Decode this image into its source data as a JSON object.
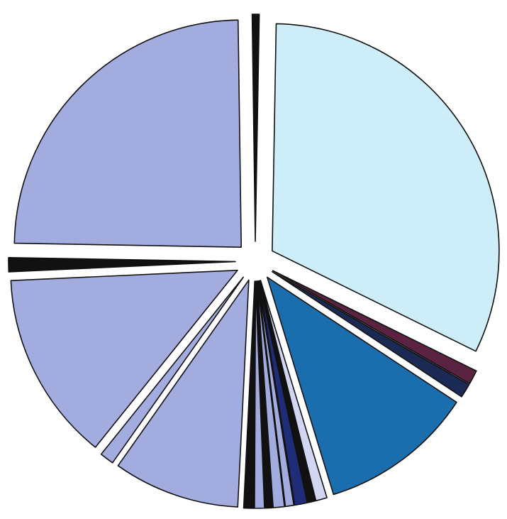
{
  "chart_data": {
    "type": "pie",
    "values": [
      32,
      1,
      1,
      11,
      0.8,
      0.5,
      0.9,
      0.6,
      0.8,
      0.5,
      0.7,
      0.7,
      9,
      1,
      13.5,
      1,
      24.5,
      0.5
    ],
    "colors": [
      "#cdeef8",
      "#5a2342",
      "#1b2a55",
      "#1a6ead",
      "#d3d6f2",
      "#111111",
      "#1f2c78",
      "#a3acdf",
      "#a3acdf",
      "#111111",
      "#a3acdf",
      "#111111",
      "#a3acdf",
      "#a3acdf",
      "#a3acdf",
      "#111111",
      "#a3acdf",
      "#111111"
    ]
  }
}
